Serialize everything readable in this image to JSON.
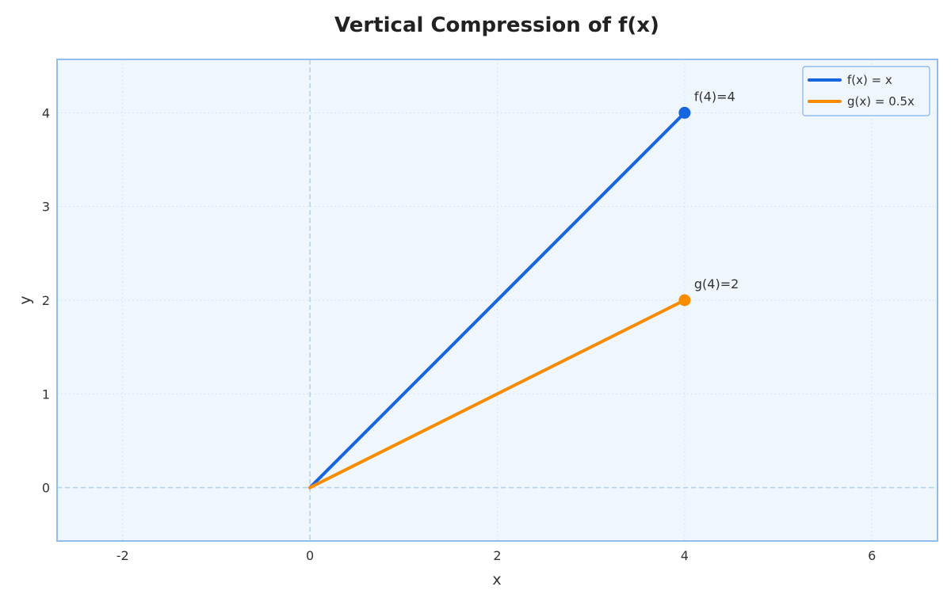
{
  "chart_data": {
    "type": "line",
    "title": "Vertical Compression of f(x)",
    "xlabel": "x",
    "ylabel": "y",
    "xlim": [
      -2.7,
      6.7
    ],
    "ylim": [
      -0.57,
      4.57
    ],
    "x_ticks": [
      -2,
      0,
      2,
      4,
      6
    ],
    "x_tick_labels": [
      "-2",
      "0",
      "2",
      "4",
      "6"
    ],
    "y_ticks": [
      0,
      1,
      2,
      3,
      4
    ],
    "y_tick_labels": [
      "0",
      "1",
      "2",
      "3",
      "4"
    ],
    "grid": true,
    "legend_position": "top-right",
    "reference_lines": {
      "x": 0,
      "y": 0
    },
    "series": [
      {
        "name": "f(x) = x",
        "color": "#1565e0",
        "x": [
          0,
          4
        ],
        "y": [
          0,
          4
        ]
      },
      {
        "name": "g(x) = 0.5x",
        "color": "#fb8c00",
        "x": [
          0,
          4
        ],
        "y": [
          0,
          2
        ]
      }
    ],
    "points": [
      {
        "x": 4,
        "y": 4,
        "color": "#1565e0",
        "label": "f(4)=4"
      },
      {
        "x": 4,
        "y": 2,
        "color": "#fb8c00",
        "label": "g(4)=2"
      }
    ],
    "colors": {
      "plot_background": "#f0f6fd",
      "frame": "#90bdee",
      "grid": "#d5e2ef",
      "reference_line": "#b3d4ec"
    }
  }
}
